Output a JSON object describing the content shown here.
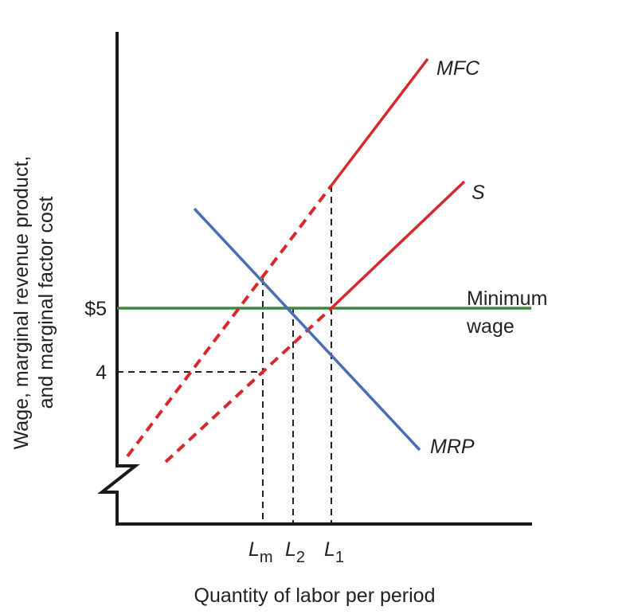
{
  "y_axis_label": {
    "line1": "Wage, marginal revenue product,",
    "line2": "and marginal factor cost"
  },
  "x_axis_label": "Quantity of labor per period",
  "y_ticks": [
    "$5",
    "4"
  ],
  "x_ticks": [
    {
      "main": "L",
      "sub": "m"
    },
    {
      "main": "L",
      "sub": "2"
    },
    {
      "main": "L",
      "sub": "1"
    }
  ],
  "curves": {
    "mfc": {
      "label": "MFC",
      "color": "#d7282b"
    },
    "s": {
      "label": "S",
      "color": "#d7282b"
    },
    "mrp": {
      "label": "MRP",
      "color": "#4a6db5"
    },
    "min_wage": {
      "line1": "Minimum",
      "line2": "wage",
      "color": "#3b8a3a"
    }
  },
  "axis_break": true
}
